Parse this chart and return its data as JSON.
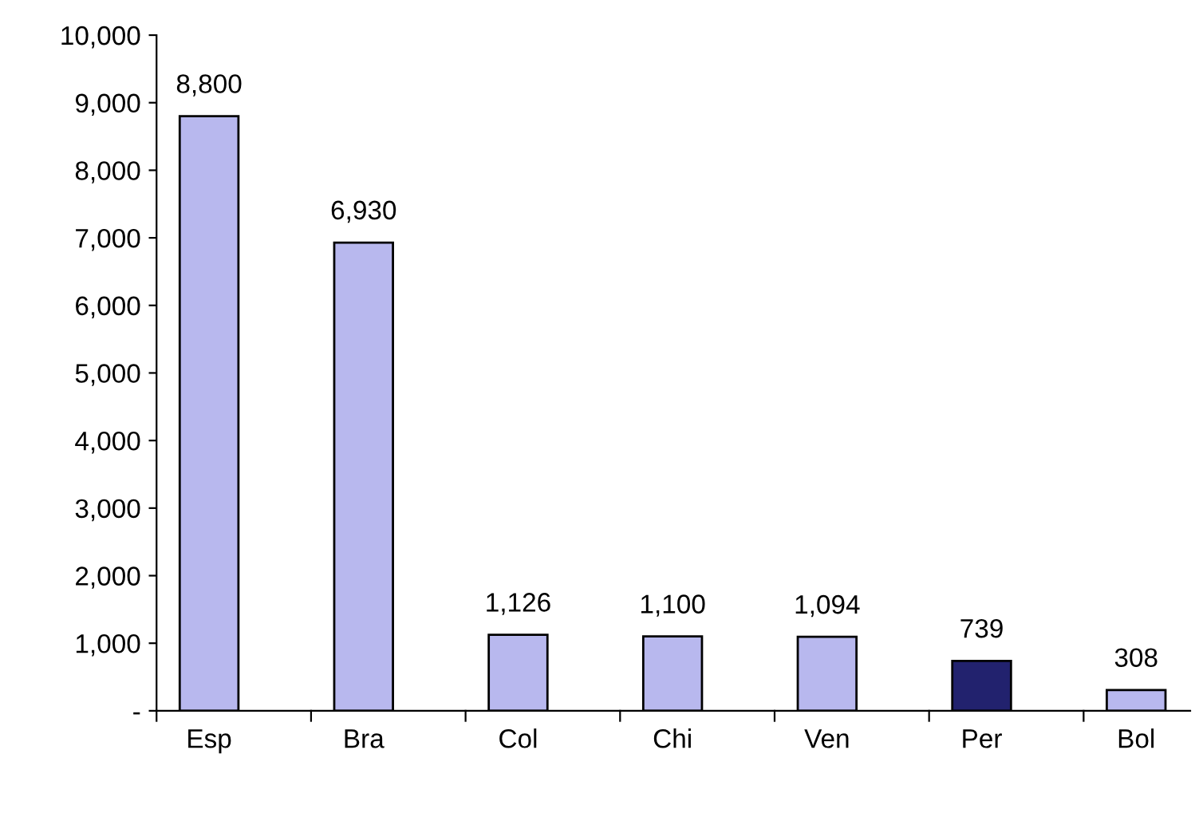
{
  "chart_data": {
    "type": "bar",
    "categories": [
      "Esp",
      "Bra",
      "Col",
      "Chi",
      "Ven",
      "Per",
      "Bol"
    ],
    "values": [
      8800,
      6930,
      1126,
      1100,
      1094,
      739,
      308
    ],
    "value_labels": [
      "8,800",
      "6,930",
      "1,126",
      "1,100",
      "1,094",
      "739",
      "308"
    ],
    "colors": [
      "#b8b8ee",
      "#b8b8ee",
      "#b8b8ee",
      "#b8b8ee",
      "#b8b8ee",
      "#22226e",
      "#b8b8ee"
    ],
    "ylim": [
      0,
      10000
    ],
    "yticks": [
      {
        "value": 0,
        "label": "-"
      },
      {
        "value": 1000,
        "label": "1,000"
      },
      {
        "value": 2000,
        "label": "2,000"
      },
      {
        "value": 3000,
        "label": "3,000"
      },
      {
        "value": 4000,
        "label": "4,000"
      },
      {
        "value": 5000,
        "label": "5,000"
      },
      {
        "value": 6000,
        "label": "6,000"
      },
      {
        "value": 7000,
        "label": "7,000"
      },
      {
        "value": 8000,
        "label": "8,000"
      },
      {
        "value": 9000,
        "label": "9,000"
      },
      {
        "value": 10000,
        "label": "10,000"
      }
    ],
    "grid": false,
    "legend": false
  }
}
